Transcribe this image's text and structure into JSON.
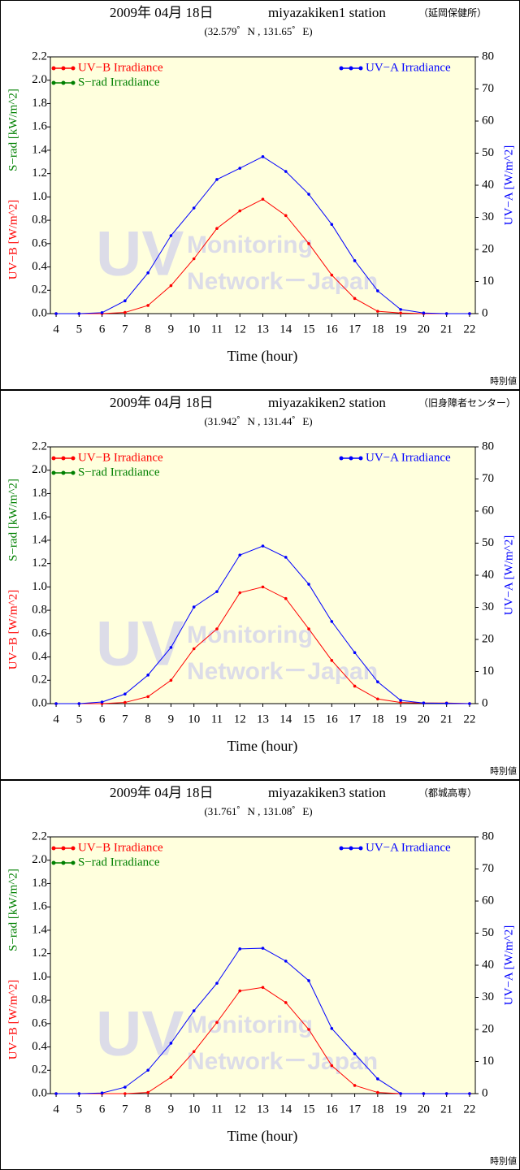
{
  "chart_data": [
    {
      "type": "line",
      "title": "2009年 04月 18日",
      "station": "miyazakiken1 station",
      "station_note": "（延岡保健所）",
      "subtitle": "(32.579゜N , 131.65゜E)",
      "xlabel": "Time (hour)",
      "ylabel": "UV−B [W/m^2]",
      "ylabel_srad": "S−rad [kW/m^2]",
      "y2label": "UV−A [W/m^2]",
      "footer": "時別値",
      "watermark": {
        "logo": "UV",
        "line1": "Monitoring",
        "line2": "Network－Japan"
      },
      "x": [
        4,
        5,
        6,
        7,
        8,
        9,
        10,
        11,
        12,
        13,
        14,
        15,
        16,
        17,
        18,
        19,
        20,
        21,
        22
      ],
      "xlim": [
        3.75,
        22.25
      ],
      "xticks": [
        4,
        5,
        6,
        7,
        8,
        9,
        10,
        11,
        12,
        13,
        14,
        15,
        16,
        17,
        18,
        19,
        20,
        21,
        22
      ],
      "ylim": [
        0,
        2.2
      ],
      "yticks": [
        {
          "value": 0,
          "label": "0.0"
        },
        {
          "value": 0.2,
          "label": "0.2"
        },
        {
          "value": 0.4,
          "label": "0.4"
        },
        {
          "value": 0.6,
          "label": "0.6"
        },
        {
          "value": 0.8,
          "label": "0.8"
        },
        {
          "value": 1,
          "label": "1.0"
        },
        {
          "value": 1.2,
          "label": "1.2"
        },
        {
          "value": 1.4,
          "label": "1.4"
        },
        {
          "value": 1.6,
          "label": "1.6"
        },
        {
          "value": 1.8,
          "label": "1.8"
        },
        {
          "value": 2,
          "label": "2.0"
        },
        {
          "value": 2.2,
          "label": "2.2"
        }
      ],
      "y2lim": [
        0,
        80
      ],
      "y2ticks": [
        0,
        10,
        20,
        30,
        40,
        50,
        60,
        70,
        80
      ],
      "series": [
        {
          "name": "UV−B Irradiance",
          "color": "#ff0000",
          "values": [
            0,
            0,
            0,
            0.01,
            0.07,
            0.24,
            0.47,
            0.73,
            0.88,
            0.98,
            0.84,
            0.6,
            0.33,
            0.13,
            0.02,
            0.005,
            0,
            0,
            0
          ]
        },
        {
          "name": "S−rad Irradiance",
          "color": "#008000",
          "values": [
            null,
            null,
            null,
            null,
            null,
            null,
            null,
            null,
            null,
            null,
            null,
            null,
            null,
            null,
            null,
            null,
            null,
            null,
            null
          ]
        },
        {
          "name": "UV−A Irradiance",
          "color": "#0000ff",
          "axis": "y2",
          "values": [
            0,
            0,
            0.3,
            4,
            12.7,
            24.3,
            32.9,
            41.8,
            45.3,
            48.9,
            44.3,
            37.2,
            27.8,
            16.5,
            7.1,
            1.3,
            0.2,
            0,
            0
          ]
        }
      ]
    },
    {
      "type": "line",
      "title": "2009年 04月 18日",
      "station": "miyazakiken2 station",
      "station_note": "（旧身障者センター）",
      "subtitle": "(31.942゜N , 131.44゜E)",
      "xlabel": "Time (hour)",
      "ylabel": "UV−B [W/m^2]",
      "ylabel_srad": "S−rad [kW/m^2]",
      "y2label": "UV−A [W/m^2]",
      "footer": "時別値",
      "watermark": {
        "logo": "UV",
        "line1": "Monitoring",
        "line2": "Network－Japan"
      },
      "x": [
        4,
        5,
        6,
        7,
        8,
        9,
        10,
        11,
        12,
        13,
        14,
        15,
        16,
        17,
        18,
        19,
        20,
        21,
        22
      ],
      "xlim": [
        3.75,
        22.25
      ],
      "xticks": [
        4,
        5,
        6,
        7,
        8,
        9,
        10,
        11,
        12,
        13,
        14,
        15,
        16,
        17,
        18,
        19,
        20,
        21,
        22
      ],
      "ylim": [
        0,
        2.2
      ],
      "yticks": [
        {
          "value": 0,
          "label": "0.0"
        },
        {
          "value": 0.2,
          "label": "0.2"
        },
        {
          "value": 0.4,
          "label": "0.4"
        },
        {
          "value": 0.6,
          "label": "0.6"
        },
        {
          "value": 0.8,
          "label": "0.8"
        },
        {
          "value": 1,
          "label": "1.0"
        },
        {
          "value": 1.2,
          "label": "1.2"
        },
        {
          "value": 1.4,
          "label": "1.4"
        },
        {
          "value": 1.6,
          "label": "1.6"
        },
        {
          "value": 1.8,
          "label": "1.8"
        },
        {
          "value": 2,
          "label": "2.0"
        },
        {
          "value": 2.2,
          "label": "2.2"
        }
      ],
      "y2lim": [
        0,
        80
      ],
      "y2ticks": [
        0,
        10,
        20,
        30,
        40,
        50,
        60,
        70,
        80
      ],
      "series": [
        {
          "name": "UV−B Irradiance",
          "color": "#ff0000",
          "values": [
            0,
            0,
            0,
            0.01,
            0.06,
            0.2,
            0.47,
            0.64,
            0.95,
            1.0,
            0.9,
            0.64,
            0.37,
            0.15,
            0.04,
            0.01,
            0.005,
            0.005,
            0
          ]
        },
        {
          "name": "S−rad Irradiance",
          "color": "#008000",
          "values": [
            null,
            null,
            null,
            null,
            null,
            null,
            null,
            null,
            null,
            null,
            null,
            null,
            null,
            null,
            null,
            null,
            null,
            null,
            null
          ]
        },
        {
          "name": "UV−A Irradiance",
          "color": "#0000ff",
          "axis": "y2",
          "values": [
            0,
            0,
            0.5,
            3,
            8.9,
            17.5,
            30.1,
            34.9,
            46.3,
            49.1,
            45.6,
            37.2,
            25.6,
            15.9,
            6.8,
            1,
            0.2,
            0.1,
            0
          ]
        }
      ]
    },
    {
      "type": "line",
      "title": "2009年 04月 18日",
      "station": "miyazakiken3 station",
      "station_note": "（都城高専）",
      "subtitle": "(31.761゜N , 131.08゜E)",
      "xlabel": "Time (hour)",
      "ylabel": "UV−B [W/m^2]",
      "ylabel_srad": "S−rad [kW/m^2]",
      "y2label": "UV−A [W/m^2]",
      "footer": "時別値",
      "watermark": {
        "logo": "UV",
        "line1": "Monitoring",
        "line2": "Network－Japan"
      },
      "x": [
        4,
        5,
        6,
        7,
        8,
        9,
        10,
        11,
        12,
        13,
        14,
        15,
        16,
        17,
        18,
        19,
        20,
        21,
        22
      ],
      "xlim": [
        3.75,
        22.25
      ],
      "xticks": [
        4,
        5,
        6,
        7,
        8,
        9,
        10,
        11,
        12,
        13,
        14,
        15,
        16,
        17,
        18,
        19,
        20,
        21,
        22
      ],
      "ylim": [
        0,
        2.2
      ],
      "yticks": [
        {
          "value": 0,
          "label": "0.0"
        },
        {
          "value": 0.2,
          "label": "0.2"
        },
        {
          "value": 0.4,
          "label": "0.4"
        },
        {
          "value": 0.6,
          "label": "0.6"
        },
        {
          "value": 0.8,
          "label": "0.8"
        },
        {
          "value": 1,
          "label": "1.0"
        },
        {
          "value": 1.2,
          "label": "1.2"
        },
        {
          "value": 1.4,
          "label": "1.4"
        },
        {
          "value": 1.6,
          "label": "1.6"
        },
        {
          "value": 1.8,
          "label": "1.8"
        },
        {
          "value": 2,
          "label": "2.0"
        },
        {
          "value": 2.2,
          "label": "2.2"
        }
      ],
      "y2lim": [
        0,
        80
      ],
      "y2ticks": [
        0,
        10,
        20,
        30,
        40,
        50,
        60,
        70,
        80
      ],
      "series": [
        {
          "name": "UV−B Irradiance",
          "color": "#ff0000",
          "values": [
            0,
            0,
            0,
            0,
            0.01,
            0.14,
            0.36,
            0.61,
            0.88,
            0.91,
            0.78,
            0.55,
            0.24,
            0.07,
            0.01,
            0,
            0,
            0,
            0
          ]
        },
        {
          "name": "S−rad Irradiance",
          "color": "#008000",
          "values": [
            null,
            null,
            null,
            null,
            null,
            null,
            null,
            null,
            null,
            null,
            null,
            null,
            null,
            null,
            null,
            null,
            null,
            null,
            null
          ]
        },
        {
          "name": "UV−A Irradiance",
          "color": "#0000ff",
          "axis": "y2",
          "values": [
            0,
            0,
            0.2,
            2,
            7.3,
            15.7,
            25.8,
            34.4,
            45.1,
            45.3,
            41.3,
            35.2,
            20.3,
            12.4,
            4.6,
            0,
            0,
            0,
            0
          ]
        }
      ]
    }
  ]
}
